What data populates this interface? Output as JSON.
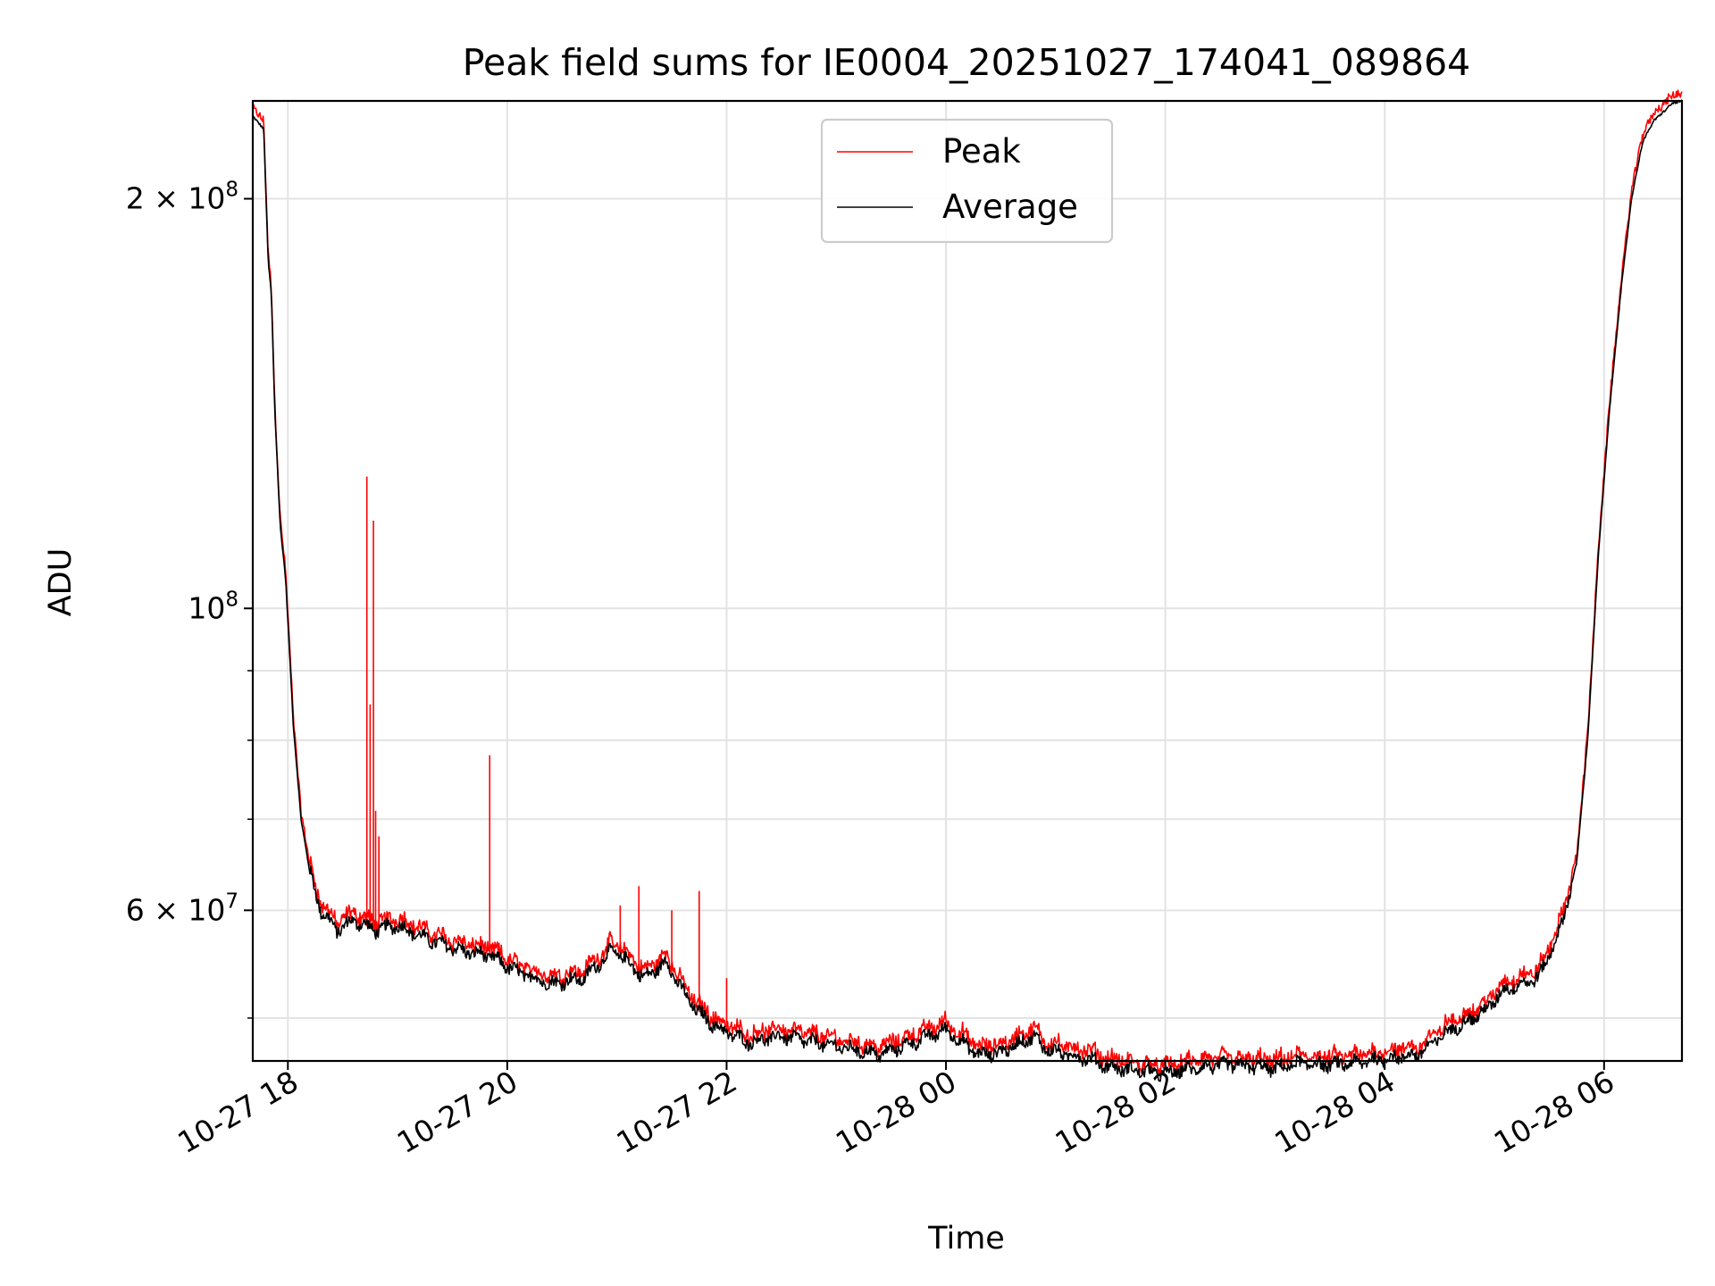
{
  "chart_data": {
    "type": "line",
    "title": "Peak field sums for IE0004_20251027_174041_089864",
    "xlabel": "Time",
    "ylabel": "ADU",
    "yscale": "log",
    "xlim_hours": [
      17.68,
      30.71
    ],
    "ylim": [
      46500000,
      236000000
    ],
    "x_ticks": [
      {
        "hour": 18,
        "label": "10-27 18"
      },
      {
        "hour": 20,
        "label": "10-27 20"
      },
      {
        "hour": 22,
        "label": "10-27 22"
      },
      {
        "hour": 24,
        "label": "10-28 00"
      },
      {
        "hour": 26,
        "label": "10-28 02"
      },
      {
        "hour": 28,
        "label": "10-28 04"
      },
      {
        "hour": 30,
        "label": "10-28 06"
      }
    ],
    "y_major_ticks": [
      {
        "value": 60000000,
        "base": "6 × 10",
        "exp": "7"
      },
      {
        "value": 100000000,
        "base": "10",
        "exp": "8"
      },
      {
        "value": 200000000,
        "base": "2 × 10",
        "exp": "8"
      }
    ],
    "y_minor_ticks": [
      50000000,
      70000000,
      80000000,
      90000000,
      300000000
    ],
    "legend": {
      "position": "upper center",
      "entries": [
        {
          "name": "Peak",
          "color": "#ff0000"
        },
        {
          "name": "Average",
          "color": "#000000"
        }
      ]
    },
    "series": [
      {
        "name": "Average",
        "color": "#000000",
        "x": [
          17.68,
          17.78,
          17.82,
          17.85,
          17.88,
          17.93,
          17.98,
          18.05,
          18.12,
          18.2,
          18.3,
          18.45,
          18.6,
          18.8,
          19.0,
          19.3,
          19.6,
          19.85,
          20.1,
          20.4,
          20.7,
          20.95,
          21.05,
          21.25,
          21.45,
          21.65,
          21.8,
          21.95,
          22.2,
          22.5,
          22.8,
          23.1,
          23.4,
          23.7,
          24.0,
          24.3,
          24.5,
          24.8,
          24.9,
          25.1,
          25.3,
          25.5,
          25.7,
          26.0,
          26.3,
          26.6,
          26.9,
          27.0,
          27.2,
          27.5,
          27.7,
          28.0,
          28.3,
          28.6,
          28.9,
          29.1,
          29.4,
          29.6,
          29.75,
          29.85,
          29.95,
          30.05,
          30.15,
          30.25,
          30.35,
          30.45,
          30.55,
          30.62,
          30.71
        ],
        "values": [
          230000000,
          225000000,
          180000000,
          170000000,
          140000000,
          115000000,
          105000000,
          82000000,
          70000000,
          64000000,
          60000000,
          58000000,
          59000000,
          58000000,
          58500000,
          57000000,
          56000000,
          55500000,
          54000000,
          53000000,
          53500000,
          56000000,
          55500000,
          53500000,
          55000000,
          51500000,
          50000000,
          49000000,
          48000000,
          48500000,
          48000000,
          47500000,
          47000000,
          48000000,
          49000000,
          47000000,
          47200000,
          48500000,
          47500000,
          47000000,
          46700000,
          46000000,
          45800000,
          45500000,
          46000000,
          46200000,
          46000000,
          45900000,
          46300000,
          46200000,
          46300000,
          46700000,
          47000000,
          49000000,
          50500000,
          52500000,
          53500000,
          58000000,
          65000000,
          80000000,
          110000000,
          140000000,
          170000000,
          200000000,
          220000000,
          228000000,
          232000000,
          235000000,
          236000000
        ]
      },
      {
        "name": "Peak",
        "color": "#ff0000",
        "spikes": [
          {
            "hour": 18.72,
            "value": 125000000
          },
          {
            "hour": 18.75,
            "value": 85000000
          },
          {
            "hour": 18.78,
            "value": 116000000
          },
          {
            "hour": 18.8,
            "value": 71000000
          },
          {
            "hour": 18.83,
            "value": 68000000
          },
          {
            "hour": 19.84,
            "value": 78000000
          },
          {
            "hour": 21.03,
            "value": 60500000
          },
          {
            "hour": 21.2,
            "value": 62500000
          },
          {
            "hour": 21.5,
            "value": 60000000
          },
          {
            "hour": 21.75,
            "value": 62000000
          },
          {
            "hour": 22.0,
            "value": 53500000
          }
        ],
        "offset_above_average": 0.015
      }
    ]
  }
}
